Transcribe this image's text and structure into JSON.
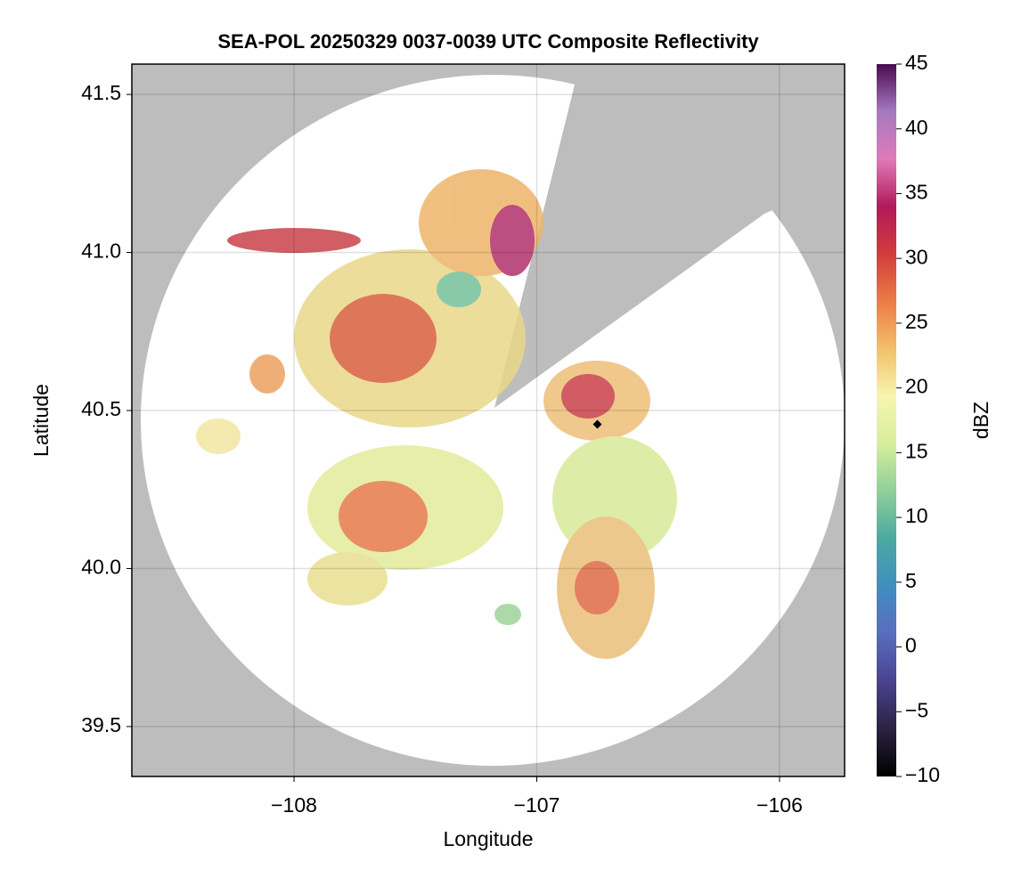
{
  "chart_data": {
    "type": "map",
    "title": "SEA-POL 20250329 0037-0039 UTC Composite Reflectivity",
    "xlabel": "Longitude",
    "ylabel": "Latitude",
    "xlim": [
      -108.668,
      -105.732
    ],
    "ylim": [
      39.342,
      41.596
    ],
    "xticks": [
      {
        "value": -108,
        "label": "−108"
      },
      {
        "value": -107,
        "label": "−107"
      },
      {
        "value": -106,
        "label": "−106"
      }
    ],
    "yticks": [
      {
        "value": 39.5,
        "label": "39.5"
      },
      {
        "value": 40.0,
        "label": "40.0"
      },
      {
        "value": 40.5,
        "label": "40.5"
      },
      {
        "value": 41.0,
        "label": "41.0"
      },
      {
        "value": 41.5,
        "label": "41.5"
      }
    ],
    "grid": true,
    "colorbar": {
      "label": "dBZ",
      "lim": [
        -10,
        45
      ],
      "ticks": [
        {
          "value": -10,
          "label": "−10"
        },
        {
          "value": -5,
          "label": "−5"
        },
        0,
        5,
        10,
        15,
        20,
        25,
        30,
        35,
        40,
        45
      ],
      "colors": [
        "#000000",
        "#2a2340",
        "#4a4290",
        "#5a6cbf",
        "#3f8fc0",
        "#4aa9a0",
        "#8fcf9a",
        "#d6ee9b",
        "#f8f5b0",
        "#f3c06a",
        "#ec7c45",
        "#d23c3c",
        "#b21a5a",
        "#e07ab8",
        "#a57abf",
        "#4a0a50"
      ]
    }
  }
}
